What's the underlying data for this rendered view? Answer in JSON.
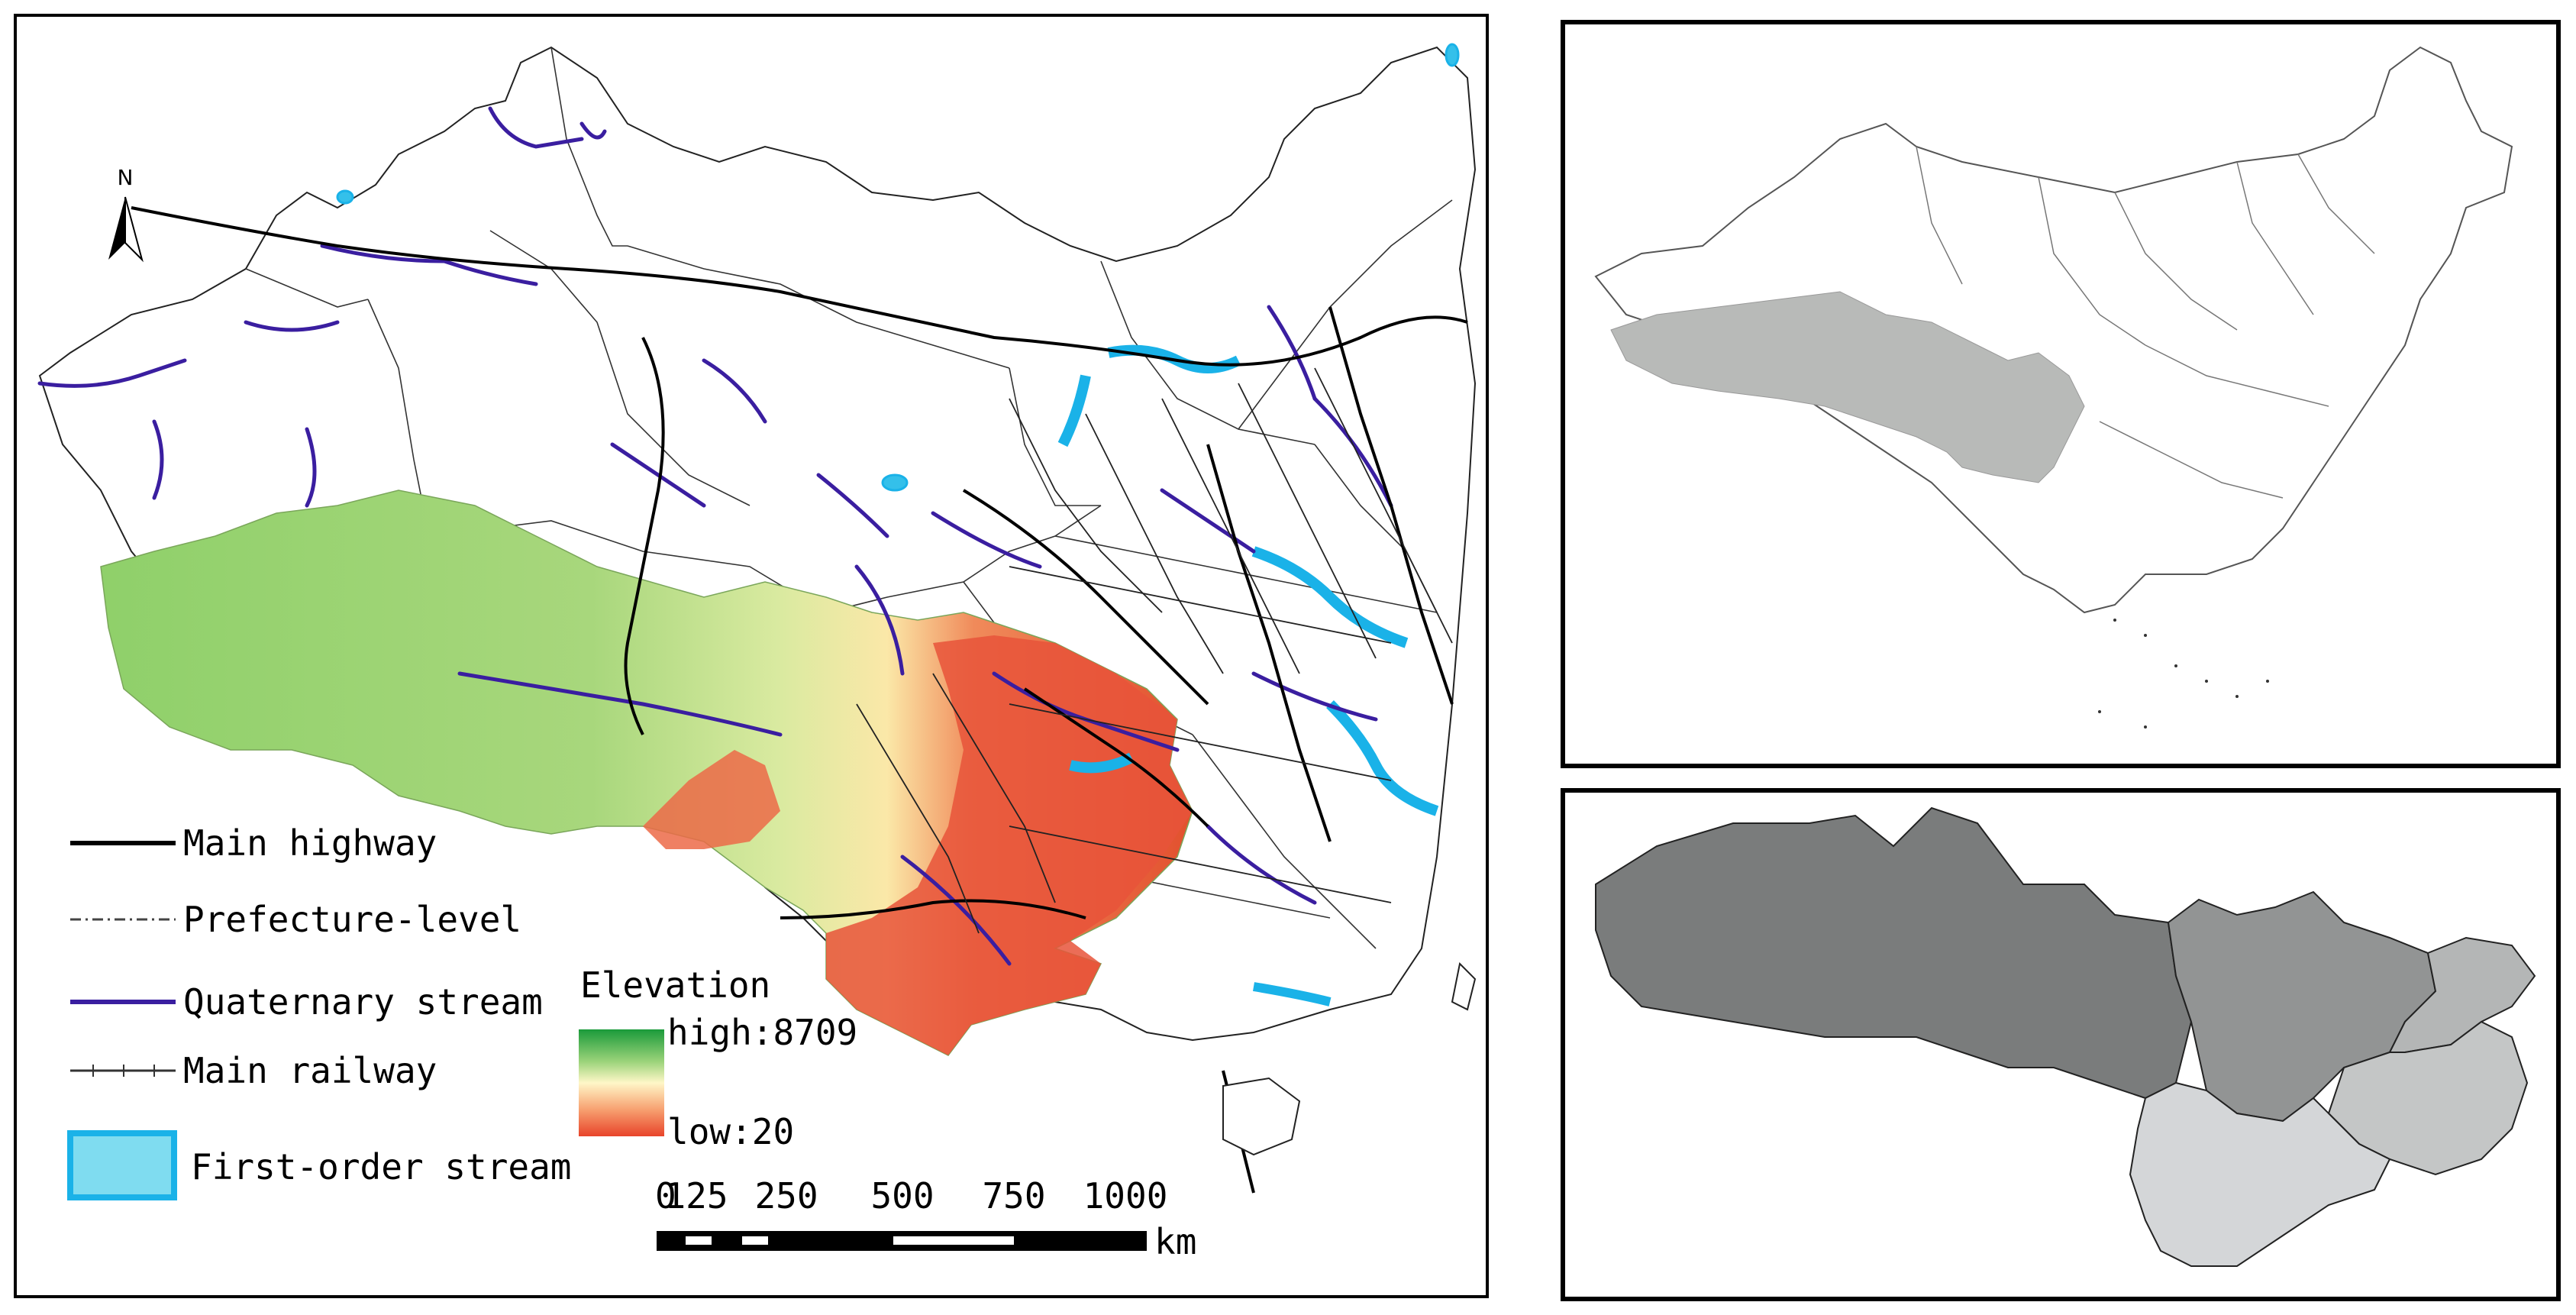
{
  "north_arrow": {
    "label": "N"
  },
  "legend": {
    "items": [
      {
        "label": "Main highway"
      },
      {
        "label": "Prefecture-level"
      },
      {
        "label": "Quaternary stream"
      },
      {
        "label": "Main railway"
      },
      {
        "label": "First-order stream"
      }
    ],
    "colors": {
      "highway": "#000000",
      "prefecture": "#444444",
      "quaternary": "#3a1ea0",
      "railway": "#333333",
      "first_order_fill": "#7fdcf0",
      "first_order_border": "#1ab2e8"
    }
  },
  "elevation": {
    "title": "Elevation",
    "high_label": "high:8709",
    "low_label": "low:20",
    "gradient": [
      "#1a9a3a",
      "#9bd37a",
      "#fff7c8",
      "#f7a070",
      "#e8442a"
    ]
  },
  "scale_bar": {
    "ticks": [
      "0",
      "125",
      "250",
      "500",
      "750",
      "1000"
    ],
    "unit": "km"
  },
  "inset_china": {
    "highlight_color": "#b8bab8",
    "outline_color": "#555555"
  },
  "inset_region": {
    "colors": [
      "#7a7c7c",
      "#929494",
      "#b4b6b6",
      "#c4c6c6",
      "#d4d6d8"
    ]
  }
}
